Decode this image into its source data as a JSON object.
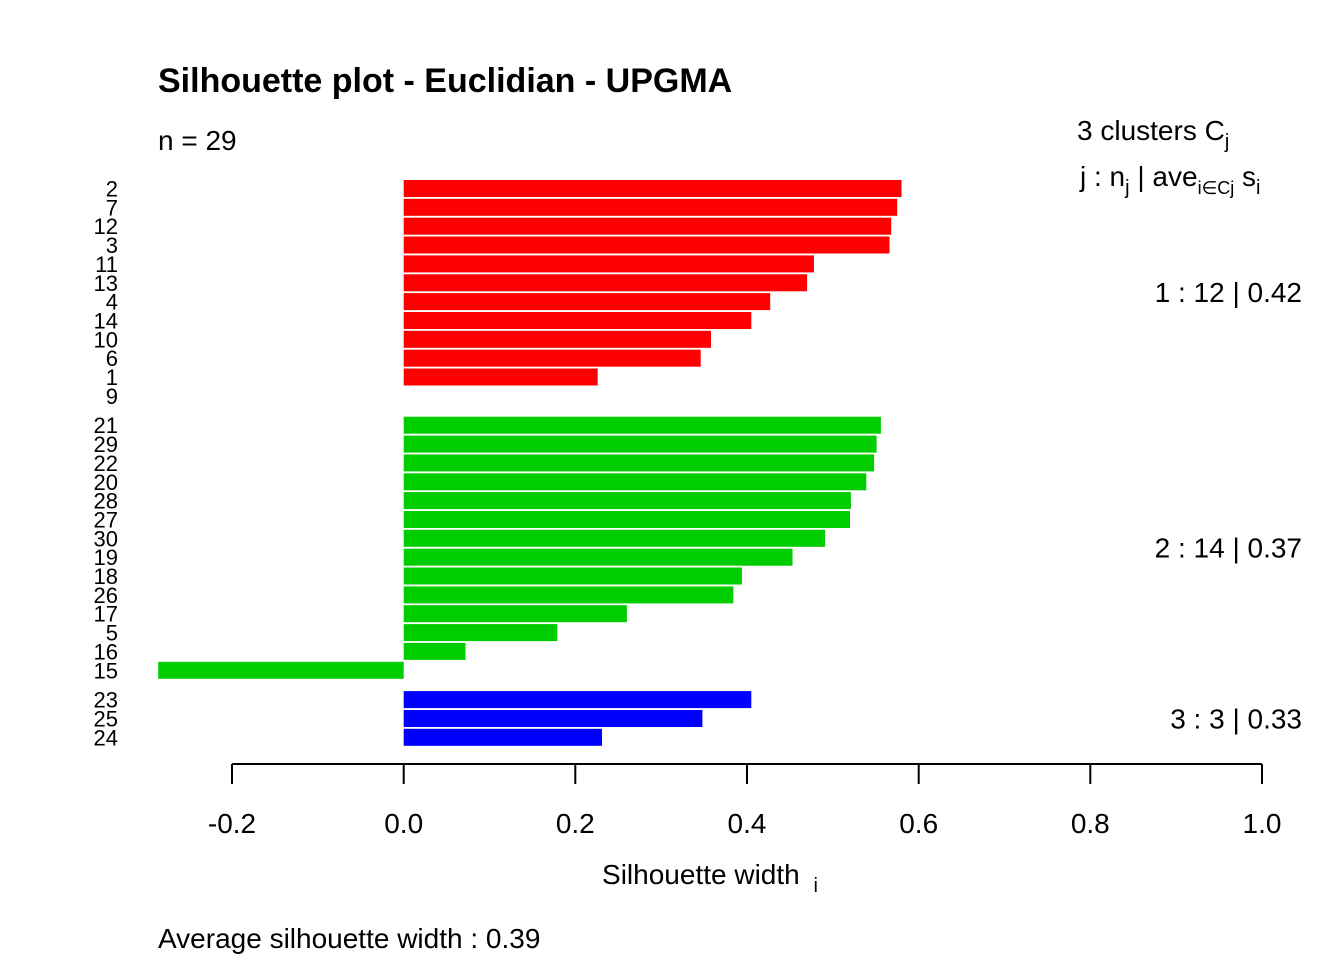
{
  "chart_data": {
    "type": "bar",
    "orientation": "horizontal",
    "title": "Silhouette plot - Euclidian - UPGMA",
    "subtitle": "n = 29",
    "xlabel": "Silhouette width",
    "xlabel_subscript": "i",
    "xlim": [
      -0.2,
      1.0
    ],
    "xticks": [
      "-0.2",
      "0.0",
      "0.2",
      "0.4",
      "0.6",
      "0.8",
      "1.0"
    ],
    "legend_header": {
      "line1": "3  clusters  C",
      "line1_sub": "j",
      "line2_a": "j :  n",
      "line2_sub": "j",
      "line2_b": " | ave",
      "line2_sub2": "i∈Cj",
      "line2_c": "  s",
      "line2_sub3": "i"
    },
    "clusters": [
      {
        "label": "1 :   12  |  0.42",
        "color": "#FF0000",
        "items": [
          {
            "id": "2",
            "value": 0.58
          },
          {
            "id": "7",
            "value": 0.575
          },
          {
            "id": "12",
            "value": 0.568
          },
          {
            "id": "3",
            "value": 0.566
          },
          {
            "id": "11",
            "value": 0.478
          },
          {
            "id": "13",
            "value": 0.47
          },
          {
            "id": "4",
            "value": 0.427
          },
          {
            "id": "14",
            "value": 0.405
          },
          {
            "id": "10",
            "value": 0.358
          },
          {
            "id": "6",
            "value": 0.346
          },
          {
            "id": "1",
            "value": 0.226
          },
          {
            "id": "9",
            "value": 0.0
          }
        ]
      },
      {
        "label": "2 :   14  |  0.37",
        "color": "#00CD00",
        "items": [
          {
            "id": "21",
            "value": 0.556
          },
          {
            "id": "29",
            "value": 0.551
          },
          {
            "id": "22",
            "value": 0.548
          },
          {
            "id": "20",
            "value": 0.539
          },
          {
            "id": "28",
            "value": 0.521
          },
          {
            "id": "27",
            "value": 0.52
          },
          {
            "id": "30",
            "value": 0.491
          },
          {
            "id": "19",
            "value": 0.453
          },
          {
            "id": "18",
            "value": 0.394
          },
          {
            "id": "26",
            "value": 0.384
          },
          {
            "id": "17",
            "value": 0.26
          },
          {
            "id": "5",
            "value": 0.179
          },
          {
            "id": "16",
            "value": 0.072
          },
          {
            "id": "15",
            "value": -0.286
          }
        ]
      },
      {
        "label": "3 :   3  |  0.33",
        "color": "#0000FF",
        "items": [
          {
            "id": "23",
            "value": 0.405
          },
          {
            "id": "25",
            "value": 0.348
          },
          {
            "id": "24",
            "value": 0.231
          }
        ]
      }
    ],
    "average_silhouette_width_label": "Average silhouette width :  0.39"
  }
}
